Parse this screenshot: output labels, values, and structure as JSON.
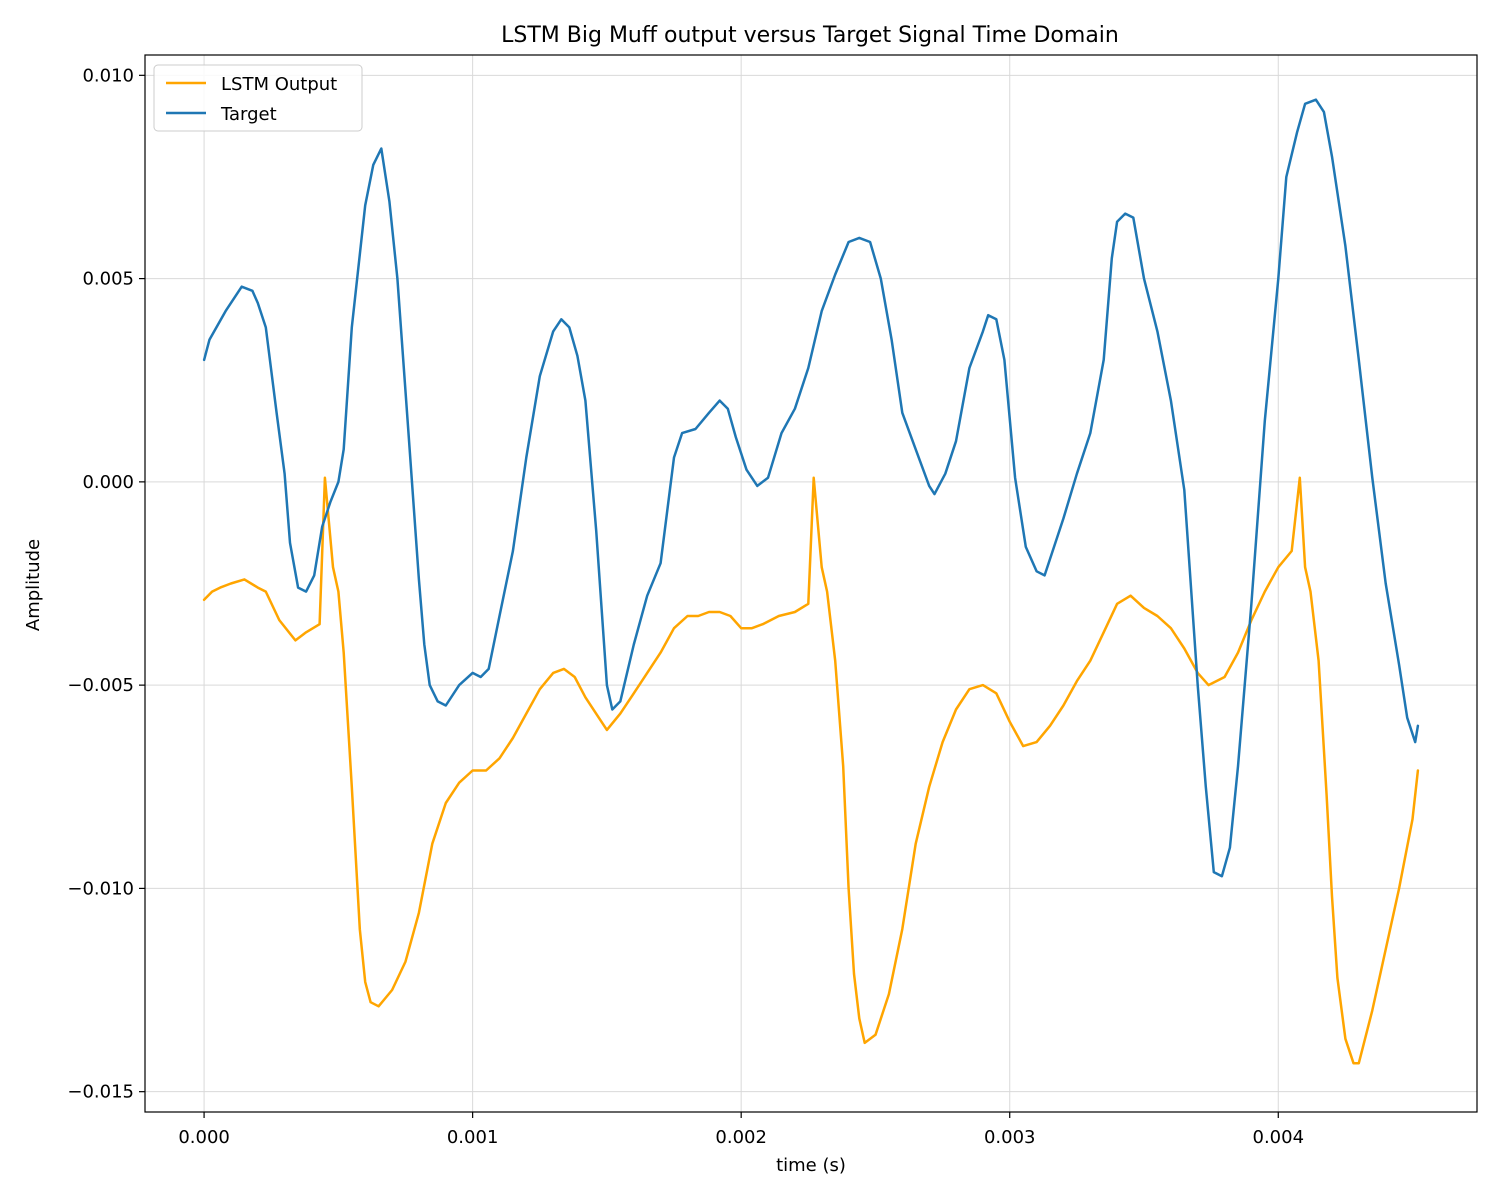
{
  "chart_data": {
    "type": "line",
    "title": "LSTM Big Muff output versus Target Signal Time Domain",
    "xlabel": "time (s)",
    "ylabel": "Amplitude",
    "xlim": [
      -0.00022,
      0.00474
    ],
    "ylim": [
      -0.0155,
      0.0105
    ],
    "x_ticks": [
      0.0,
      0.001,
      0.002,
      0.003,
      0.004
    ],
    "x_tick_labels": [
      "0.000",
      "0.001",
      "0.002",
      "0.003",
      "0.004"
    ],
    "y_ticks": [
      0.01,
      0.005,
      0.0,
      -0.005,
      -0.01,
      -0.015
    ],
    "y_tick_labels": [
      "0.010",
      "0.005",
      "0.000",
      "−0.005",
      "−0.010",
      "−0.015"
    ],
    "grid": true,
    "legend_position": "top-left",
    "series": [
      {
        "name": "LSTM Output",
        "color": "#ffa500",
        "points": [
          [
            0.0,
            -0.0029
          ],
          [
            3e-05,
            -0.0027
          ],
          [
            6e-05,
            -0.0026
          ],
          [
            0.0001,
            -0.0025
          ],
          [
            0.00015,
            -0.0024
          ],
          [
            0.0002,
            -0.0026
          ],
          [
            0.00023,
            -0.0027
          ],
          [
            0.00028,
            -0.0034
          ],
          [
            0.00034,
            -0.0039
          ],
          [
            0.00038,
            -0.0037
          ],
          [
            0.00043,
            -0.0035
          ],
          [
            0.00045,
            0.0001
          ],
          [
            0.00048,
            -0.0021
          ],
          [
            0.0005,
            -0.0027
          ],
          [
            0.00052,
            -0.0042
          ],
          [
            0.00055,
            -0.0075
          ],
          [
            0.00058,
            -0.011
          ],
          [
            0.0006,
            -0.0123
          ],
          [
            0.00062,
            -0.0128
          ],
          [
            0.00065,
            -0.0129
          ],
          [
            0.0007,
            -0.0125
          ],
          [
            0.00075,
            -0.0118
          ],
          [
            0.0008,
            -0.0106
          ],
          [
            0.00085,
            -0.0089
          ],
          [
            0.0009,
            -0.0079
          ],
          [
            0.00095,
            -0.0074
          ],
          [
            0.001,
            -0.0071
          ],
          [
            0.00105,
            -0.0071
          ],
          [
            0.0011,
            -0.0068
          ],
          [
            0.00115,
            -0.0063
          ],
          [
            0.0012,
            -0.0057
          ],
          [
            0.00125,
            -0.0051
          ],
          [
            0.0013,
            -0.0047
          ],
          [
            0.00134,
            -0.0046
          ],
          [
            0.00138,
            -0.0048
          ],
          [
            0.00142,
            -0.0053
          ],
          [
            0.00147,
            -0.0058
          ],
          [
            0.0015,
            -0.0061
          ],
          [
            0.00155,
            -0.0057
          ],
          [
            0.0016,
            -0.0052
          ],
          [
            0.00165,
            -0.0047
          ],
          [
            0.0017,
            -0.0042
          ],
          [
            0.00175,
            -0.0036
          ],
          [
            0.0018,
            -0.0033
          ],
          [
            0.00184,
            -0.0033
          ],
          [
            0.00188,
            -0.0032
          ],
          [
            0.00192,
            -0.0032
          ],
          [
            0.00196,
            -0.0033
          ],
          [
            0.002,
            -0.0036
          ],
          [
            0.00204,
            -0.0036
          ],
          [
            0.00208,
            -0.0035
          ],
          [
            0.00214,
            -0.0033
          ],
          [
            0.0022,
            -0.0032
          ],
          [
            0.00225,
            -0.003
          ],
          [
            0.00227,
            0.0001
          ],
          [
            0.0023,
            -0.0021
          ],
          [
            0.00232,
            -0.0027
          ],
          [
            0.00235,
            -0.0044
          ],
          [
            0.00238,
            -0.007
          ],
          [
            0.0024,
            -0.01
          ],
          [
            0.00242,
            -0.0121
          ],
          [
            0.00244,
            -0.0132
          ],
          [
            0.00246,
            -0.0138
          ],
          [
            0.0025,
            -0.0136
          ],
          [
            0.00255,
            -0.0126
          ],
          [
            0.0026,
            -0.011
          ],
          [
            0.00265,
            -0.0089
          ],
          [
            0.0027,
            -0.0075
          ],
          [
            0.00275,
            -0.0064
          ],
          [
            0.0028,
            -0.0056
          ],
          [
            0.00285,
            -0.0051
          ],
          [
            0.0029,
            -0.005
          ],
          [
            0.00295,
            -0.0052
          ],
          [
            0.003,
            -0.0059
          ],
          [
            0.00305,
            -0.0065
          ],
          [
            0.0031,
            -0.0064
          ],
          [
            0.00315,
            -0.006
          ],
          [
            0.0032,
            -0.0055
          ],
          [
            0.00325,
            -0.0049
          ],
          [
            0.0033,
            -0.0044
          ],
          [
            0.00335,
            -0.0037
          ],
          [
            0.0034,
            -0.003
          ],
          [
            0.00345,
            -0.0028
          ],
          [
            0.0035,
            -0.0031
          ],
          [
            0.00355,
            -0.0033
          ],
          [
            0.0036,
            -0.0036
          ],
          [
            0.00365,
            -0.0041
          ],
          [
            0.0037,
            -0.0047
          ],
          [
            0.00374,
            -0.005
          ],
          [
            0.0038,
            -0.0048
          ],
          [
            0.00385,
            -0.0042
          ],
          [
            0.0039,
            -0.0034
          ],
          [
            0.00395,
            -0.0027
          ],
          [
            0.004,
            -0.0021
          ],
          [
            0.00405,
            -0.0017
          ],
          [
            0.00408,
            0.0001
          ],
          [
            0.0041,
            -0.0021
          ],
          [
            0.00412,
            -0.0027
          ],
          [
            0.00415,
            -0.0044
          ],
          [
            0.00418,
            -0.0077
          ],
          [
            0.0042,
            -0.0102
          ],
          [
            0.00422,
            -0.0122
          ],
          [
            0.00425,
            -0.0137
          ],
          [
            0.00428,
            -0.0143
          ],
          [
            0.0043,
            -0.0143
          ],
          [
            0.00435,
            -0.013
          ],
          [
            0.0044,
            -0.0115
          ],
          [
            0.00445,
            -0.01
          ],
          [
            0.0045,
            -0.0083
          ],
          [
            0.00452,
            -0.0071
          ]
        ]
      },
      {
        "name": "Target",
        "color": "#1f77b4",
        "points": [
          [
            0.0,
            0.003
          ],
          [
            2e-05,
            0.0035
          ],
          [
            8e-05,
            0.0042
          ],
          [
            0.00014,
            0.0048
          ],
          [
            0.00018,
            0.0047
          ],
          [
            0.0002,
            0.0044
          ],
          [
            0.00023,
            0.0038
          ],
          [
            0.00027,
            0.0017
          ],
          [
            0.0003,
            0.0002
          ],
          [
            0.00032,
            -0.0015
          ],
          [
            0.00035,
            -0.0026
          ],
          [
            0.00038,
            -0.0027
          ],
          [
            0.00041,
            -0.0023
          ],
          [
            0.00044,
            -0.0011
          ],
          [
            0.00047,
            -0.0005
          ],
          [
            0.0005,
            0.0
          ],
          [
            0.00052,
            0.0008
          ],
          [
            0.00055,
            0.0038
          ],
          [
            0.0006,
            0.0068
          ],
          [
            0.00063,
            0.0078
          ],
          [
            0.00066,
            0.0082
          ],
          [
            0.00069,
            0.0069
          ],
          [
            0.00072,
            0.005
          ],
          [
            0.00076,
            0.0013
          ],
          [
            0.0008,
            -0.0024
          ],
          [
            0.00082,
            -0.004
          ],
          [
            0.00084,
            -0.005
          ],
          [
            0.00087,
            -0.0054
          ],
          [
            0.0009,
            -0.0055
          ],
          [
            0.00095,
            -0.005
          ],
          [
            0.001,
            -0.0047
          ],
          [
            0.00103,
            -0.0048
          ],
          [
            0.00106,
            -0.0046
          ],
          [
            0.0011,
            -0.0033
          ],
          [
            0.00115,
            -0.0017
          ],
          [
            0.0012,
            0.0006
          ],
          [
            0.00125,
            0.0026
          ],
          [
            0.0013,
            0.0037
          ],
          [
            0.00133,
            0.004
          ],
          [
            0.00136,
            0.0038
          ],
          [
            0.00139,
            0.0031
          ],
          [
            0.00142,
            0.002
          ],
          [
            0.00146,
            -0.0012
          ],
          [
            0.0015,
            -0.005
          ],
          [
            0.00152,
            -0.0056
          ],
          [
            0.00155,
            -0.0054
          ],
          [
            0.0016,
            -0.004
          ],
          [
            0.00165,
            -0.0028
          ],
          [
            0.0017,
            -0.002
          ],
          [
            0.00175,
            0.0006
          ],
          [
            0.00178,
            0.0012
          ],
          [
            0.00183,
            0.0013
          ],
          [
            0.00188,
            0.0017
          ],
          [
            0.00192,
            0.002
          ],
          [
            0.00195,
            0.0018
          ],
          [
            0.00198,
            0.0011
          ],
          [
            0.00202,
            0.0003
          ],
          [
            0.00206,
            -0.0001
          ],
          [
            0.0021,
            0.0001
          ],
          [
            0.00215,
            0.0012
          ],
          [
            0.0022,
            0.0018
          ],
          [
            0.00225,
            0.0028
          ],
          [
            0.0023,
            0.0042
          ],
          [
            0.00235,
            0.0051
          ],
          [
            0.0024,
            0.0059
          ],
          [
            0.00244,
            0.006
          ],
          [
            0.00248,
            0.0059
          ],
          [
            0.00252,
            0.005
          ],
          [
            0.00256,
            0.0035
          ],
          [
            0.0026,
            0.0017
          ],
          [
            0.00265,
            0.0008
          ],
          [
            0.0027,
            -0.0001
          ],
          [
            0.00272,
            -0.0003
          ],
          [
            0.00276,
            0.0002
          ],
          [
            0.0028,
            0.001
          ],
          [
            0.00285,
            0.0028
          ],
          [
            0.0029,
            0.0037
          ],
          [
            0.00292,
            0.0041
          ],
          [
            0.00295,
            0.004
          ],
          [
            0.00298,
            0.003
          ],
          [
            0.00302,
            0.0001
          ],
          [
            0.00306,
            -0.0016
          ],
          [
            0.0031,
            -0.0022
          ],
          [
            0.00313,
            -0.0023
          ],
          [
            0.0032,
            -0.0009
          ],
          [
            0.00325,
            0.0002
          ],
          [
            0.0033,
            0.0012
          ],
          [
            0.00335,
            0.003
          ],
          [
            0.00338,
            0.0055
          ],
          [
            0.0034,
            0.0064
          ],
          [
            0.00343,
            0.0066
          ],
          [
            0.00346,
            0.0065
          ],
          [
            0.0035,
            0.005
          ],
          [
            0.00355,
            0.0037
          ],
          [
            0.0036,
            0.002
          ],
          [
            0.00365,
            -0.0002
          ],
          [
            0.0037,
            -0.005
          ],
          [
            0.00373,
            -0.0075
          ],
          [
            0.00376,
            -0.0096
          ],
          [
            0.00379,
            -0.0097
          ],
          [
            0.00382,
            -0.009
          ],
          [
            0.00385,
            -0.007
          ],
          [
            0.0039,
            -0.003
          ],
          [
            0.00395,
            0.0015
          ],
          [
            0.004,
            0.005
          ],
          [
            0.00403,
            0.0075
          ],
          [
            0.00407,
            0.0086
          ],
          [
            0.0041,
            0.0093
          ],
          [
            0.00414,
            0.0094
          ],
          [
            0.00417,
            0.0091
          ],
          [
            0.0042,
            0.008
          ],
          [
            0.00425,
            0.0058
          ],
          [
            0.0043,
            0.003
          ],
          [
            0.00435,
            0.0001
          ],
          [
            0.0044,
            -0.0025
          ],
          [
            0.00445,
            -0.0045
          ],
          [
            0.00448,
            -0.0058
          ],
          [
            0.00451,
            -0.0064
          ],
          [
            0.00452,
            -0.006
          ]
        ]
      }
    ]
  }
}
